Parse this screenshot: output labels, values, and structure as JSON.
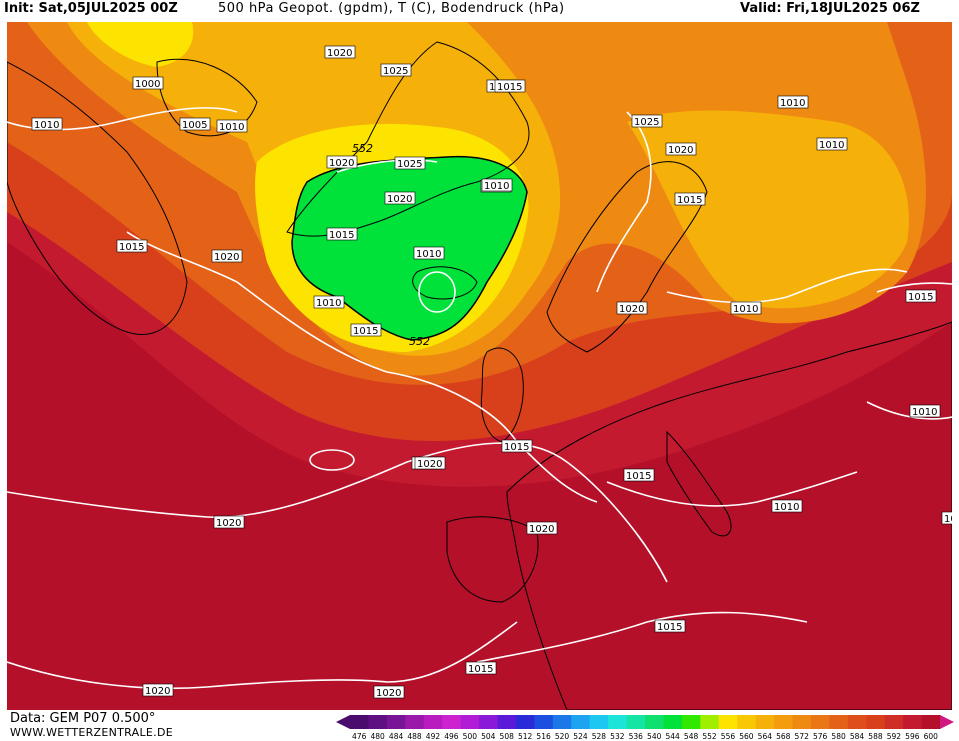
{
  "header": {
    "init": "Init: Sat,05JUL2025 00Z",
    "title": "500 hPa Geopot. (gpdm), T (C), Bodendruck (hPa)",
    "valid": "Valid: Fri,18JUL2025 06Z"
  },
  "footer": {
    "data_source": "Data: GEM P07 0.500°",
    "website": "WWW.WETTERZENTRALE.DE"
  },
  "colors": {
    "dark_red": "#b5102a",
    "crimson": "#c41a30",
    "red_orange": "#d8401c",
    "orange": "#e46218",
    "light_orange": "#ee8a12",
    "amber": "#f6b00a",
    "yellow": "#fde400",
    "green": "#00e23a",
    "isobar": "#ffffff",
    "coast": "#000000"
  },
  "pressure_labels": [
    "1000",
    "1005",
    "1010",
    "1010",
    "1015",
    "1020",
    "1010",
    "1020",
    "1020",
    "1015",
    "1025",
    "1020",
    "1025",
    "1010",
    "1010",
    "1015",
    "1020",
    "1010",
    "1010",
    "1025",
    "1020",
    "1010",
    "1015",
    "1010",
    "1020",
    "1010",
    "1015",
    "1020",
    "1015",
    "1010",
    "1015",
    "1015",
    "1020",
    "1020",
    "1015",
    "1015",
    "1020",
    "1015",
    "1020",
    "10"
  ],
  "geopotential_labels": [
    "552",
    "552"
  ],
  "colorbar": {
    "values": [
      "476",
      "480",
      "484",
      "488",
      "492",
      "496",
      "500",
      "504",
      "508",
      "512",
      "516",
      "520",
      "524",
      "528",
      "532",
      "536",
      "540",
      "544",
      "548",
      "552",
      "556",
      "560",
      "564",
      "568",
      "572",
      "576",
      "580",
      "584",
      "588",
      "592",
      "596",
      "600"
    ],
    "colors": [
      "#4a0d6e",
      "#5e0f82",
      "#7a1496",
      "#9a18aa",
      "#b81cbe",
      "#cc22d0",
      "#b21cd6",
      "#8a1ad8",
      "#5a1ad8",
      "#2a2ad8",
      "#1c4ee0",
      "#1c78e8",
      "#1ca4f0",
      "#1cc8f0",
      "#1ce4d8",
      "#14e4a4",
      "#10e070",
      "#00e23a",
      "#30e800",
      "#a0ee00",
      "#fde400",
      "#f8c804",
      "#f6b00a",
      "#f29c0e",
      "#ee8a12",
      "#ea7616",
      "#e46218",
      "#de4e1a",
      "#d8401c",
      "#ce2e26",
      "#c41a30",
      "#b5102a"
    ]
  }
}
